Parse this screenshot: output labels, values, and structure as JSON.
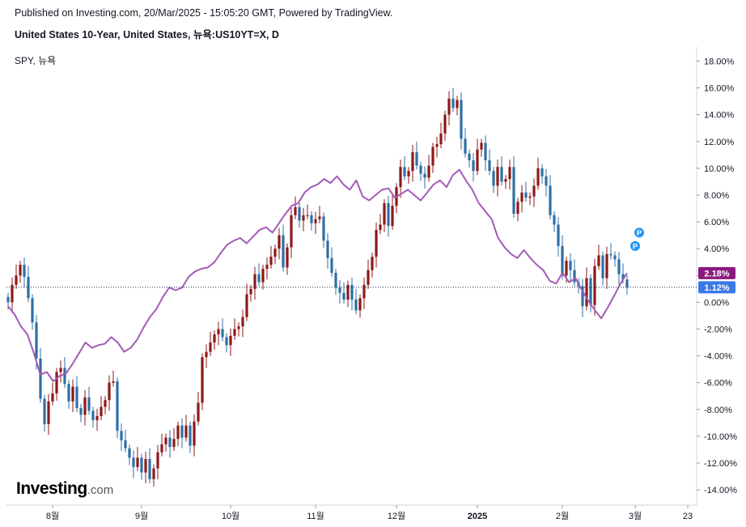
{
  "header": {
    "published": "Published on Investing.com, 20/Mar/2025 - 15:05:20 GMT, Powered by TradingView.",
    "title": "United States 10-Year, United States, 뉴욕:US10YT=X, D",
    "compare_label": "SPY, 뉴욕"
  },
  "logo": {
    "main": "Investing",
    "suffix": ".com"
  },
  "colors": {
    "up": "#8b1a1a",
    "down": "#2e6fa6",
    "spy_line": "#a55bb6",
    "grid_line": "#1e2a4d",
    "spy_tag": "#8b1a7e",
    "main_tag": "#3b78e7",
    "marker": "#2196f3"
  },
  "chart_data": {
    "type": "candlestick",
    "y_unit": "percent change",
    "ylim": [
      -15,
      18
    ],
    "y_ticks": [
      18,
      16,
      14,
      12,
      10,
      8,
      6,
      4,
      2,
      0,
      -2,
      -4,
      -6,
      -8,
      -10,
      -12,
      -14
    ],
    "y_tick_labels": [
      "18.00%",
      "16.00%",
      "14.00%",
      "12.00%",
      "10.00%",
      "8.00%",
      "6.00%",
      "4.00%",
      "2.00%",
      "0.00%",
      "-2.00%",
      "-4.00%",
      "-6.00%",
      "-8.00%",
      "-10.00%",
      "-12.00%",
      "-14.00%"
    ],
    "x_range": [
      0,
      165
    ],
    "x_ticks": [
      {
        "x": 11,
        "label": "8월"
      },
      {
        "x": 33,
        "label": "9월"
      },
      {
        "x": 55,
        "label": "10월"
      },
      {
        "x": 76,
        "label": "11월"
      },
      {
        "x": 96,
        "label": "12월"
      },
      {
        "x": 116,
        "label": "2025"
      },
      {
        "x": 137,
        "label": "2월"
      },
      {
        "x": 155,
        "label": "3월"
      },
      {
        "x": 168,
        "label": "23"
      }
    ],
    "series": [
      {
        "name": "US10YT=X",
        "kind": "candles",
        "last_label": "1.12%",
        "close": [
          0,
          1.3,
          2.0,
          2.8,
          1.9,
          0.3,
          -1.5,
          -4.2,
          -7.2,
          -9.1,
          -7.4,
          -6.8,
          -5.2,
          -4.9,
          -6.1,
          -7.4,
          -6.3,
          -7.9,
          -8.4,
          -7.1,
          -8.1,
          -8.8,
          -8.5,
          -7.8,
          -7.3,
          -6.0,
          -5.9,
          -9.6,
          -10.3,
          -10.9,
          -11.6,
          -12.3,
          -11.6,
          -12.7,
          -11.7,
          -13.2,
          -12.4,
          -11.2,
          -10.6,
          -10.1,
          -10.8,
          -10.2,
          -9.2,
          -10.1,
          -9.2,
          -10.7,
          -8.9,
          -7.5,
          -4.1,
          -3.7,
          -3.0,
          -2.4,
          -2.0,
          -2.6,
          -3.2,
          -2.5,
          -2.0,
          -1.8,
          -1.1,
          0.6,
          1.0,
          2.1,
          1.5,
          2.5,
          2.8,
          3.4,
          4.0,
          5.0,
          2.6,
          4.1,
          6.5,
          7.1,
          6.1,
          6.5,
          6.5,
          5.9,
          6.2,
          6.4,
          4.6,
          3.3,
          2.2,
          1.1,
          0.7,
          0.2,
          1.3,
          0.2,
          -0.6,
          0.3,
          1.3,
          2.4,
          3.4,
          5.4,
          5.8,
          7.4,
          5.7,
          7.2,
          8.6,
          10.1,
          9.4,
          9.8,
          11.2,
          10.2,
          9.6,
          9.3,
          10.2,
          11.6,
          11.8,
          12.6,
          14.0,
          15.2,
          14.5,
          15.1,
          12.2,
          11.1,
          10.6,
          9.8,
          11.4,
          11.9,
          10.6,
          9.8,
          8.7,
          10.1,
          9.0,
          9.2,
          10.1,
          6.6,
          7.5,
          8.2,
          7.8,
          7.9,
          8.7,
          10.0,
          9.4,
          8.7,
          6.5,
          5.8,
          4.2,
          2.0,
          3.1,
          2.4,
          1.5,
          1.2,
          -0.3,
          1.8,
          -0.2,
          2.7,
          3.5,
          1.8,
          3.6,
          3.5,
          3.2,
          2.1,
          1.7,
          1.12
        ],
        "x_step": 1
      },
      {
        "name": "SPY",
        "kind": "line",
        "last_label": "2.18%",
        "values": [
          -0.3,
          -0.9,
          -1.8,
          -2.4,
          -3.8,
          -5.4,
          -5.2,
          -5.9,
          -5.5,
          -5.3,
          -4.6,
          -3.8,
          -3.0,
          -3.4,
          -3.2,
          -3.1,
          -2.6,
          -3.0,
          -3.7,
          -3.4,
          -2.8,
          -1.9,
          -1.1,
          -0.5,
          0.4,
          1.1,
          0.9,
          1.1,
          1.9,
          2.3,
          2.5,
          2.6,
          3.0,
          3.7,
          4.3,
          4.6,
          4.8,
          4.4,
          4.9,
          5.4,
          5.6,
          5.2,
          5.9,
          6.6,
          7.2,
          7.4,
          8.2,
          8.6,
          8.8,
          9.2,
          8.9,
          9.4,
          8.8,
          8.4,
          9.1,
          7.9,
          7.6,
          8.0,
          8.4,
          8.5,
          7.8,
          8.1,
          8.4,
          8.0,
          7.6,
          8.2,
          8.8,
          9.1,
          8.6,
          9.5,
          9.9,
          9.1,
          8.4,
          7.4,
          6.8,
          6.2,
          4.8,
          4.1,
          3.6,
          3.3,
          3.9,
          3.3,
          2.8,
          2.4,
          1.6,
          1.4,
          2.2,
          1.5,
          1.8,
          0.9,
          0.1,
          -0.6,
          -1.2,
          -0.4,
          0.5,
          1.4,
          2.18
        ]
      }
    ],
    "markers": [
      {
        "label": "P",
        "x": 156,
        "y": 5.2
      },
      {
        "label": "P",
        "x": 155,
        "y": 4.2
      }
    ]
  }
}
